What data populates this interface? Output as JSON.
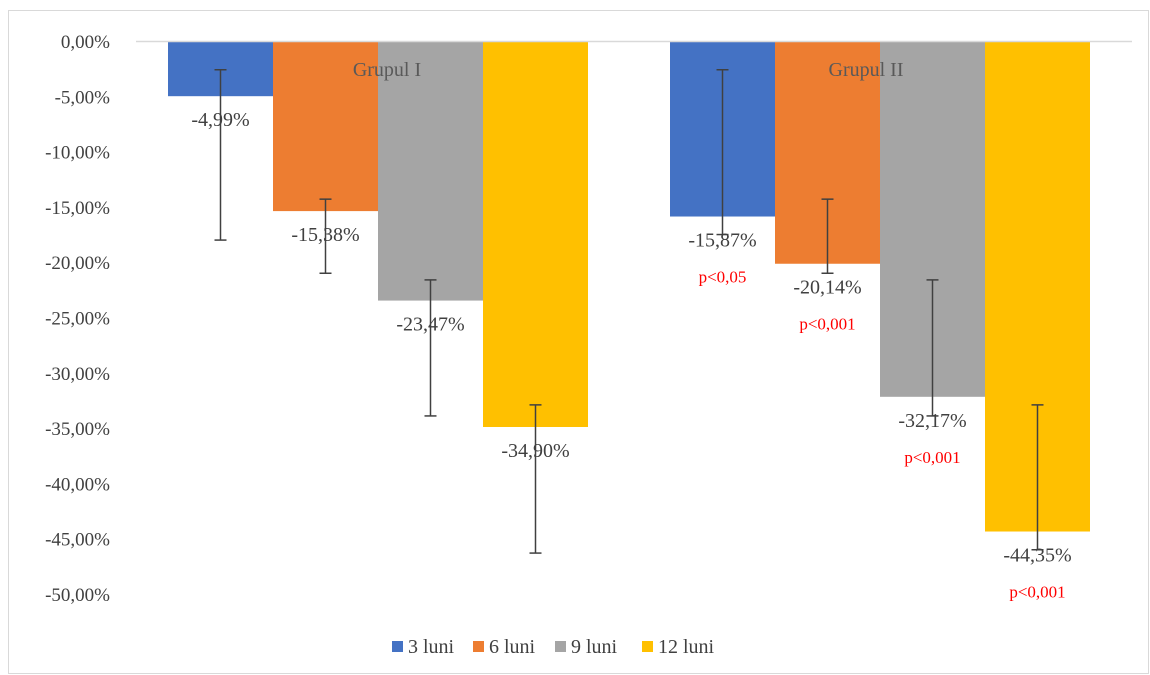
{
  "chart_data": {
    "type": "bar",
    "categories": [
      "Grupul I",
      "Grupul II"
    ],
    "series": [
      {
        "name": "3 luni",
        "color": "#4472C4",
        "values": [
          -4.99,
          -15.87
        ],
        "labels": [
          "-4,99%",
          "-15,87%"
        ],
        "err_low": [
          -18.0,
          -17.5
        ],
        "err_high": [
          -2.6,
          -2.6
        ],
        "pvalues": [
          "",
          "p<0,05"
        ]
      },
      {
        "name": "6 luni",
        "color": "#ED7D31",
        "values": [
          -15.38,
          -20.14
        ],
        "labels": [
          "-15,38%",
          "-20,14%"
        ],
        "err_low": [
          -21.0,
          -21.0
        ],
        "err_high": [
          -14.3,
          -14.3
        ],
        "pvalues": [
          "",
          "p<0,001"
        ]
      },
      {
        "name": "9 luni",
        "color": "#A5A5A5",
        "values": [
          -23.47,
          -32.17
        ],
        "labels": [
          "-23,47%",
          "-32,17%"
        ],
        "err_low": [
          -33.9,
          -33.9
        ],
        "err_high": [
          -21.6,
          -21.6
        ],
        "pvalues": [
          "",
          "p<0,001"
        ]
      },
      {
        "name": "12 luni",
        "color": "#FFC000",
        "values": [
          -34.9,
          -44.35
        ],
        "labels": [
          "-34,90%",
          "-44,35%"
        ],
        "err_low": [
          -46.3,
          -46.0
        ],
        "err_high": [
          -32.9,
          -32.9
        ],
        "pvalues": [
          "",
          "p<0,001"
        ]
      }
    ],
    "yticks": [
      0,
      -5,
      -10,
      -15,
      -20,
      -25,
      -30,
      -35,
      -40,
      -45,
      -50
    ],
    "ytick_labels": [
      "0,00%",
      "-5,00%",
      "-10,00%",
      "-15,00%",
      "-20,00%",
      "-25,00%",
      "-30,00%",
      "-35,00%",
      "-40,00%",
      "-45,00%",
      "-50,00%"
    ],
    "ylim": [
      -50,
      0
    ],
    "grid": false,
    "legend_position": "bottom",
    "pvalue_color": "#FF0000",
    "errorbar_color": "#404040",
    "axis_color": "#D9D9D9"
  }
}
